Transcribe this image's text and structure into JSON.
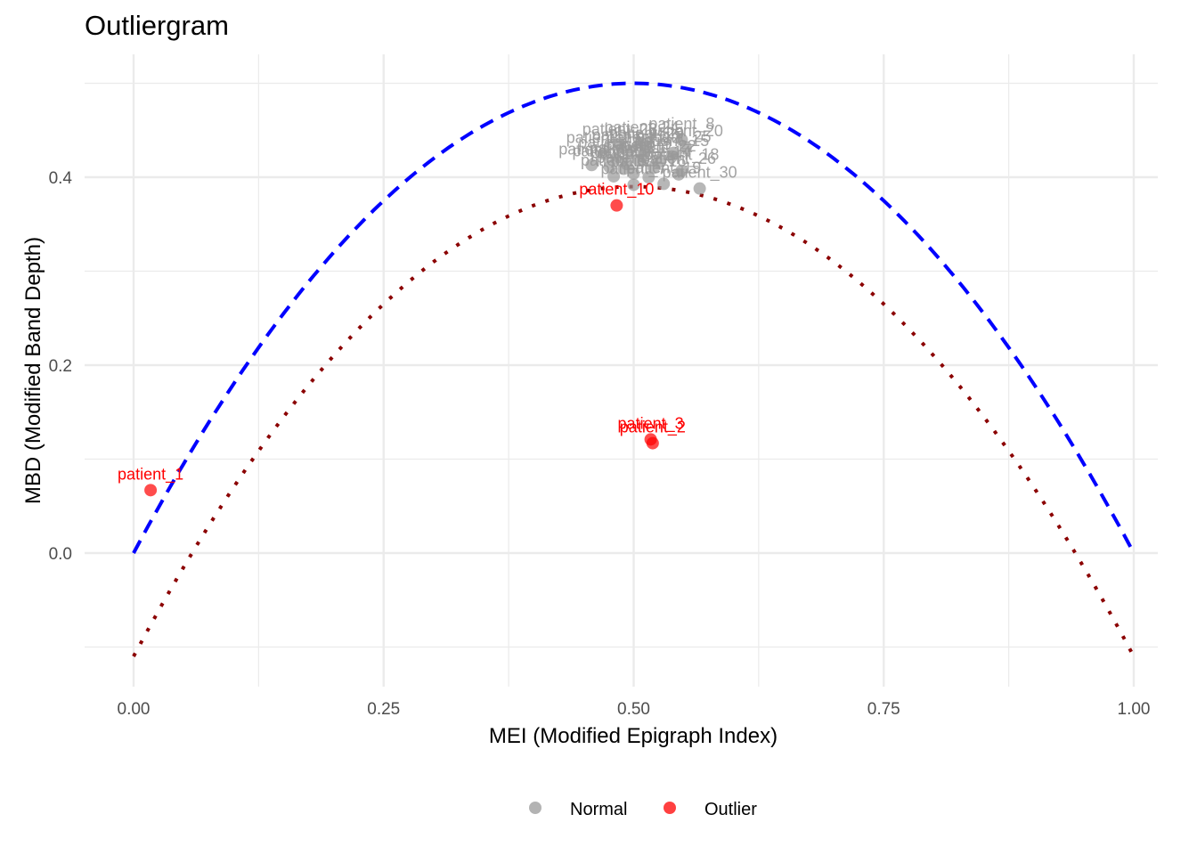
{
  "chart_data": {
    "type": "scatter",
    "title": "Outliergram",
    "xlabel": "MEI (Modified Epigraph Index)",
    "ylabel": "MBD (Modified Band Depth)",
    "xlim": [
      -0.05,
      1.05
    ],
    "ylim": [
      -0.125,
      0.53
    ],
    "x_ticks": [
      0.0,
      0.25,
      0.5,
      0.75,
      1.0
    ],
    "x_tick_labels": [
      "0.00",
      "0.25",
      "0.50",
      "0.75",
      "1.00"
    ],
    "x_minor": [
      0.125,
      0.375,
      0.625,
      0.875
    ],
    "y_ticks": [
      0.0,
      0.2,
      0.4
    ],
    "y_tick_labels": [
      "0.0",
      "0.2",
      "0.4"
    ],
    "y_minor": [
      -0.1,
      0.1,
      0.3,
      0.5
    ],
    "grid": true,
    "legend_position": "bottom",
    "legend": [
      {
        "label": "Normal",
        "color": "#999999"
      },
      {
        "label": "Outlier",
        "color": "#ff0000"
      }
    ],
    "curves": [
      {
        "name": "parabola-upper",
        "a0": 0.0,
        "a1": 2.0,
        "a2": -2.0,
        "style": "dashed",
        "color": "#0000ff"
      },
      {
        "name": "parabola-lower",
        "a0": -0.11,
        "a1": 2.0,
        "a2": -2.0,
        "style": "dotted",
        "color": "#8b0000"
      }
    ],
    "series": [
      {
        "name": "Normal",
        "color": "#999999",
        "points": [
          {
            "label": "patient_4",
            "x": 0.458,
            "y": 0.413
          },
          {
            "label": "patient_5",
            "x": 0.48,
            "y": 0.401
          },
          {
            "label": "patient_6",
            "x": 0.49,
            "y": 0.409
          },
          {
            "label": "patient_7",
            "x": 0.5,
            "y": 0.392
          },
          {
            "label": "patient_8",
            "x": 0.548,
            "y": 0.44
          },
          {
            "label": "patient_9",
            "x": 0.505,
            "y": 0.418
          },
          {
            "label": "patient_11",
            "x": 0.495,
            "y": 0.428
          },
          {
            "label": "patient_12",
            "x": 0.51,
            "y": 0.425
          },
          {
            "label": "patient_13",
            "x": 0.482,
            "y": 0.42
          },
          {
            "label": "patient_14",
            "x": 0.52,
            "y": 0.41
          },
          {
            "label": "patient_15",
            "x": 0.538,
            "y": 0.422
          },
          {
            "label": "patient_16",
            "x": 0.515,
            "y": 0.4
          },
          {
            "label": "patient_17",
            "x": 0.47,
            "y": 0.425
          },
          {
            "label": "patient_18",
            "x": 0.548,
            "y": 0.407
          },
          {
            "label": "patient_19",
            "x": 0.53,
            "y": 0.393
          },
          {
            "label": "patient_20",
            "x": 0.552,
            "y": 0.432
          },
          {
            "label": "patient_21",
            "x": 0.493,
            "y": 0.414
          },
          {
            "label": "patient_22",
            "x": 0.525,
            "y": 0.416
          },
          {
            "label": "patient_23",
            "x": 0.486,
            "y": 0.434
          },
          {
            "label": "patient_24",
            "x": 0.508,
            "y": 0.436
          },
          {
            "label": "patient_25",
            "x": 0.54,
            "y": 0.426
          },
          {
            "label": "patient_26",
            "x": 0.545,
            "y": 0.403
          },
          {
            "label": "patient_27",
            "x": 0.5,
            "y": 0.404
          },
          {
            "label": "patient_28",
            "x": 0.476,
            "y": 0.411
          },
          {
            "label": "patient_29",
            "x": 0.513,
            "y": 0.43
          },
          {
            "label": "patient_30",
            "x": 0.566,
            "y": 0.388
          }
        ]
      },
      {
        "name": "Outlier",
        "color": "#ff0000",
        "points": [
          {
            "label": "patient_1",
            "x": 0.017,
            "y": 0.067
          },
          {
            "label": "patient_2",
            "x": 0.519,
            "y": 0.117
          },
          {
            "label": "patient_3",
            "x": 0.517,
            "y": 0.121
          },
          {
            "label": "patient_10",
            "x": 0.483,
            "y": 0.37
          }
        ]
      }
    ]
  }
}
